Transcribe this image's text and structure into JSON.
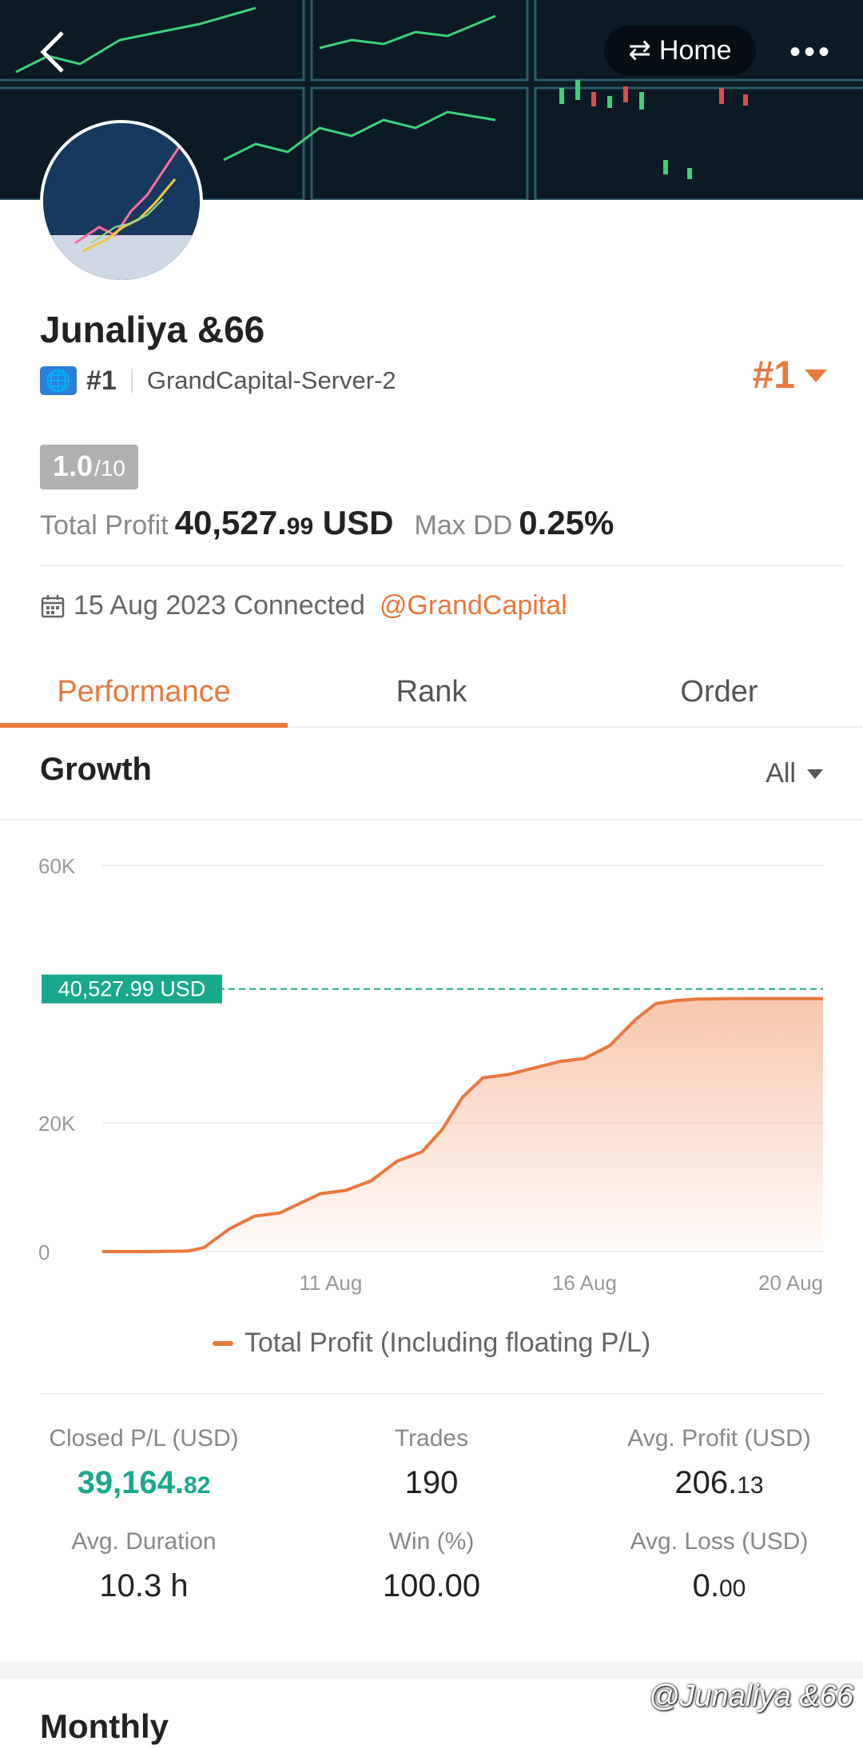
{
  "header": {
    "home_label": "Home",
    "more_label": "•••",
    "back_label": "‹"
  },
  "profile": {
    "name": "Junaliya &66",
    "rank_label": "#1",
    "server": "GrandCapital-Server-2",
    "overall_rank": "#1",
    "score": "1.0",
    "score_max": "/10",
    "total_profit_label": "Total Profit",
    "total_profit_int": "40,527.",
    "total_profit_dec": "99",
    "total_profit_unit": " USD",
    "max_dd_label": "Max DD",
    "max_dd_value": "0.25%",
    "connected_text": "15 Aug 2023 Connected",
    "broker_link": "@GrandCapital"
  },
  "tabs": [
    {
      "label": "Performance",
      "active": true
    },
    {
      "label": "Rank",
      "active": false
    },
    {
      "label": "Order",
      "active": false
    }
  ],
  "growth": {
    "title": "Growth",
    "filter": "All"
  },
  "chart_data": {
    "type": "area",
    "xlabel": "",
    "ylabel": "",
    "ylim": [
      0,
      60000
    ],
    "yticks": [
      "60K",
      "20K",
      "0"
    ],
    "ytick_values": [
      60000,
      20000,
      0
    ],
    "xticks": [
      "11 Aug",
      "16 Aug",
      "20 Aug"
    ],
    "xtick_values": [
      11,
      16,
      20
    ],
    "xlim": [
      6.5,
      20.7
    ],
    "series": [
      {
        "name": "Total Profit (Including floating P/L)",
        "x": [
          6.5,
          7.5,
          8.2,
          8.5,
          9.0,
          9.5,
          10.0,
          10.4,
          10.8,
          11.3,
          11.8,
          12.3,
          12.8,
          13.2,
          13.6,
          14.0,
          14.5,
          15.0,
          15.5,
          16.0,
          16.5,
          17.0,
          17.4,
          17.8,
          18.2,
          19.0,
          20.0,
          20.7
        ],
        "values": [
          0,
          0,
          100,
          600,
          3500,
          5500,
          6000,
          7500,
          9000,
          9500,
          11000,
          14000,
          15500,
          19000,
          24000,
          27000,
          27500,
          28500,
          29500,
          30000,
          32000,
          36000,
          38500,
          39000,
          39200,
          39300,
          39300,
          39300
        ]
      }
    ],
    "marker_label": "40,527.99 USD",
    "marker_value": 40527.99,
    "colors": {
      "line": "#e8783e",
      "fill": "#f7b89a",
      "marker": "#1aa88c"
    },
    "legend_position": "bottom"
  },
  "stats": [
    {
      "label": "Closed P/L (USD)",
      "int": "39,164.",
      "dec": "82",
      "green": true
    },
    {
      "label": "Trades",
      "int": "190",
      "dec": "",
      "green": false
    },
    {
      "label": "Avg. Profit (USD)",
      "int": "206.",
      "dec": "13",
      "green": false
    },
    {
      "label": "Avg. Duration",
      "int": "10.3 h",
      "dec": "",
      "green": false
    },
    {
      "label": "Win (%)",
      "int": "100.00",
      "dec": "",
      "green": false
    },
    {
      "label": "Avg. Loss (USD)",
      "int": "0.",
      "dec": "00",
      "green": false
    }
  ],
  "monthly_title": "Monthly",
  "watermark": "@Junaliya &66"
}
